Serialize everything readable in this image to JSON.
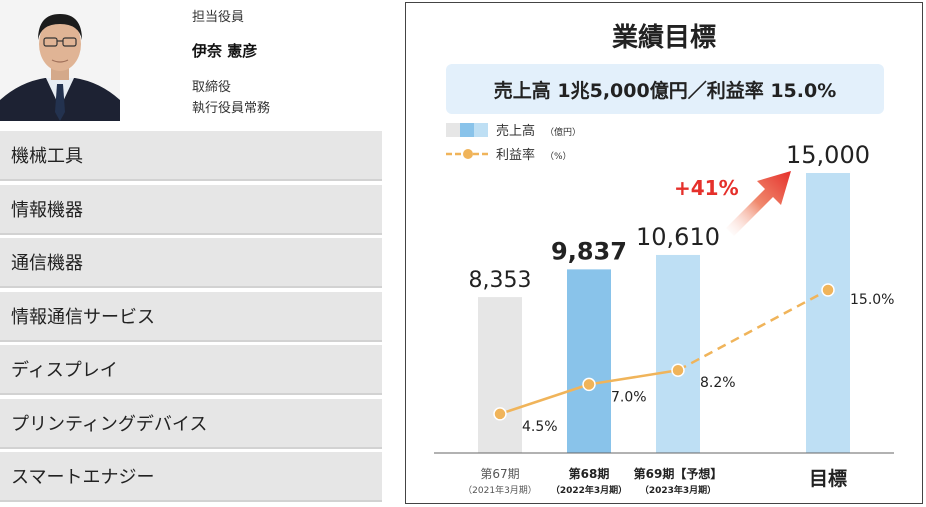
{
  "officer": {
    "role_label": "担当役員",
    "name": "伊奈 憲彦",
    "title_line1": "取締役",
    "title_line2": "執行役員常務"
  },
  "segments": [
    {
      "label": "機械工具"
    },
    {
      "label": "情報機器"
    },
    {
      "label": "通信機器"
    },
    {
      "label": "情報通信サービス"
    },
    {
      "label": "ディスプレイ"
    },
    {
      "label": "プリンティングデバイス"
    },
    {
      "label": "スマートエナジー"
    }
  ],
  "chart_data": {
    "type": "bar",
    "title": "業績目標",
    "target_banner": "売上高 1兆5,000億円／利益率 15.0%",
    "categories": [
      "第67期",
      "第68期",
      "第69期【予想】",
      "目標"
    ],
    "category_sublabels": [
      "（2021年3月期）",
      "（2022年3月期）",
      "（2023年3月期）",
      ""
    ],
    "series": [
      {
        "name": "売上高",
        "unit": "（億円）",
        "type": "bar",
        "values": [
          8353,
          9837,
          10610,
          15000
        ],
        "labels": [
          "8,353",
          "9,837",
          "10,610",
          "15,000"
        ]
      },
      {
        "name": "利益率",
        "unit": "（%）",
        "type": "line",
        "values": [
          4.5,
          7.0,
          8.2,
          15.0
        ],
        "labels": [
          "4.5%",
          "7.0%",
          "8.2%",
          "15.0%"
        ]
      }
    ],
    "annotation": "+41%",
    "colors": {
      "bar_actual_past": "#e6e6e6",
      "bar_actual_recent": "#89c3ea",
      "bar_forecast": "#bedff4",
      "line": "#f0b45a",
      "growth": "#e5302b",
      "axis": "#666666"
    }
  }
}
